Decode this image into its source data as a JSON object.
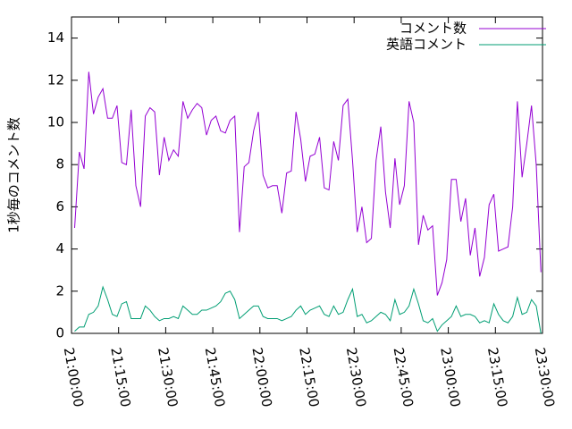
{
  "chart_data": {
    "type": "line",
    "ylabel": "1秒毎のコメント数",
    "x": [
      "21:01:00",
      "21:02:30",
      "21:04:00",
      "21:05:30",
      "21:07:00",
      "21:08:30",
      "21:10:00",
      "21:11:30",
      "21:13:00",
      "21:14:30",
      "21:16:00",
      "21:17:30",
      "21:19:00",
      "21:20:30",
      "21:22:00",
      "21:23:30",
      "21:25:00",
      "21:26:30",
      "21:28:00",
      "21:29:30",
      "21:31:00",
      "21:32:30",
      "21:34:00",
      "21:35:30",
      "21:37:00",
      "21:38:30",
      "21:40:00",
      "21:41:30",
      "21:43:00",
      "21:44:30",
      "21:46:00",
      "21:47:30",
      "21:49:00",
      "21:50:30",
      "21:52:00",
      "21:53:30",
      "21:55:00",
      "21:56:30",
      "21:58:00",
      "21:59:30",
      "22:01:00",
      "22:02:30",
      "22:04:00",
      "22:05:30",
      "22:07:00",
      "22:08:30",
      "22:10:00",
      "22:11:30",
      "22:13:00",
      "22:14:30",
      "22:16:00",
      "22:17:30",
      "22:19:00",
      "22:20:30",
      "22:22:00",
      "22:23:30",
      "22:25:00",
      "22:26:30",
      "22:28:00",
      "22:29:30",
      "22:31:00",
      "22:32:30",
      "22:34:00",
      "22:35:30",
      "22:37:00",
      "22:38:30",
      "22:40:00",
      "22:41:30",
      "22:43:00",
      "22:44:30",
      "22:46:00",
      "22:47:30",
      "22:49:00",
      "22:50:30",
      "22:52:00",
      "22:53:30",
      "22:55:00",
      "22:56:30",
      "22:58:00",
      "22:59:30",
      "23:01:00",
      "23:02:30",
      "23:04:00",
      "23:05:30",
      "23:07:00",
      "23:08:30",
      "23:10:00",
      "23:11:30",
      "23:13:00",
      "23:14:30",
      "23:16:00",
      "23:17:30",
      "23:19:00",
      "23:20:30",
      "23:22:00",
      "23:23:30",
      "23:25:00",
      "23:26:30",
      "23:28:00",
      "23:29:30"
    ],
    "series": [
      {
        "name": "コメント数",
        "color": "#9400d3",
        "values": [
          5.0,
          8.6,
          7.8,
          12.4,
          10.4,
          11.2,
          11.6,
          10.2,
          10.2,
          10.8,
          8.1,
          8.0,
          10.6,
          7.0,
          6.0,
          10.3,
          10.7,
          10.5,
          7.5,
          9.3,
          8.2,
          8.7,
          8.4,
          11.0,
          10.2,
          10.6,
          10.9,
          10.7,
          9.4,
          10.1,
          10.3,
          9.6,
          9.5,
          10.1,
          10.3,
          4.8,
          7.9,
          8.1,
          9.6,
          10.5,
          7.5,
          6.9,
          7.0,
          7.0,
          5.7,
          7.6,
          7.7,
          10.5,
          9.2,
          7.2,
          8.4,
          8.5,
          9.3,
          6.9,
          6.8,
          9.1,
          8.2,
          10.8,
          11.1,
          8.2,
          4.8,
          6.0,
          4.3,
          4.5,
          8.2,
          9.8,
          6.7,
          5.0,
          8.3,
          6.1,
          7.0,
          11.0,
          10.0,
          4.2,
          5.6,
          4.9,
          5.1,
          1.8,
          2.4,
          3.5,
          7.3,
          7.3,
          5.3,
          6.4,
          3.7,
          5.0,
          2.7,
          3.6,
          6.1,
          6.6,
          3.9,
          4.0,
          4.1,
          6.0,
          11.0,
          7.4,
          9.0,
          10.8,
          8.0,
          2.9
        ]
      },
      {
        "name": "英語コメント",
        "color": "#009e73",
        "values": [
          0.1,
          0.3,
          0.3,
          0.9,
          1.0,
          1.3,
          2.2,
          1.6,
          0.9,
          0.8,
          1.4,
          1.5,
          0.7,
          0.7,
          0.7,
          1.3,
          1.1,
          0.8,
          0.6,
          0.7,
          0.7,
          0.8,
          0.7,
          1.3,
          1.1,
          0.9,
          0.9,
          1.1,
          1.1,
          1.2,
          1.3,
          1.5,
          1.9,
          2.0,
          1.6,
          0.7,
          0.9,
          1.1,
          1.3,
          1.3,
          0.8,
          0.7,
          0.7,
          0.7,
          0.6,
          0.7,
          0.8,
          1.1,
          1.3,
          0.9,
          1.1,
          1.2,
          1.3,
          0.9,
          0.8,
          1.3,
          0.9,
          1.0,
          1.6,
          2.1,
          0.8,
          0.9,
          0.5,
          0.6,
          0.8,
          1.0,
          0.9,
          0.6,
          1.6,
          0.9,
          1.0,
          1.3,
          2.1,
          1.4,
          0.6,
          0.5,
          0.7,
          0.1,
          0.4,
          0.6,
          0.8,
          1.3,
          0.8,
          0.9,
          0.9,
          0.8,
          0.5,
          0.6,
          0.5,
          1.4,
          0.9,
          0.6,
          0.5,
          0.8,
          1.7,
          0.9,
          1.0,
          1.6,
          1.3,
          0.0
        ]
      }
    ],
    "xlim": [
      "21:00:00",
      "23:30:00"
    ],
    "xticks": [
      "21:00:00",
      "21:15:00",
      "21:30:00",
      "21:45:00",
      "22:00:00",
      "22:15:00",
      "22:30:00",
      "22:45:00",
      "23:00:00",
      "23:15:00",
      "23:30:00"
    ],
    "ylim": [
      0,
      15
    ],
    "yticks": [
      0,
      2,
      4,
      6,
      8,
      10,
      12,
      14
    ],
    "grid": false,
    "legend": "top-right"
  }
}
